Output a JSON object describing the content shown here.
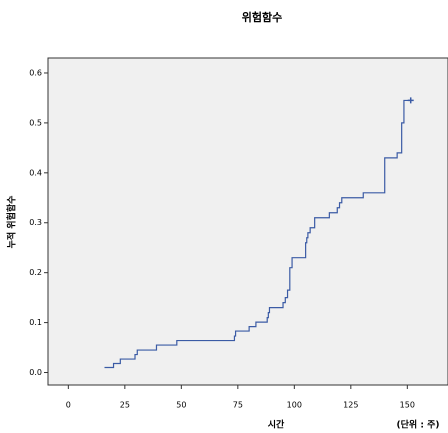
{
  "chart_data": {
    "type": "step",
    "title": "위험함수",
    "x_label": "시간",
    "y_label": "누적 위험함수",
    "annotation": "(단위 : 주)",
    "x": [
      16,
      20,
      23,
      29.5,
      30.5,
      39,
      48,
      73.5,
      74,
      80,
      83,
      88,
      88.5,
      89,
      95,
      96,
      97,
      98,
      99,
      105,
      105.5,
      106,
      107,
      109,
      115.5,
      119,
      120,
      121,
      130.5,
      140,
      145.5,
      147.5,
      148.5,
      151.5
    ],
    "values": [
      0.01,
      0.018,
      0.027,
      0.036,
      0.045,
      0.055,
      0.064,
      0.073,
      0.083,
      0.092,
      0.101,
      0.11,
      0.12,
      0.13,
      0.14,
      0.15,
      0.165,
      0.21,
      0.23,
      0.26,
      0.27,
      0.28,
      0.29,
      0.31,
      0.32,
      0.33,
      0.34,
      0.35,
      0.36,
      0.43,
      0.44,
      0.5,
      0.545,
      0.545
    ],
    "color": "#3b5ba5",
    "censored_last": true,
    "xlim": [
      -9,
      168
    ],
    "xticks": [
      0,
      25,
      50,
      75,
      100,
      125,
      150
    ],
    "ylim": [
      -0.025,
      0.63
    ],
    "yticks": [
      {
        "value": 0,
        "label": "0.0"
      },
      0.1,
      0.2,
      0.3,
      0.4,
      0.5,
      0.6
    ]
  }
}
